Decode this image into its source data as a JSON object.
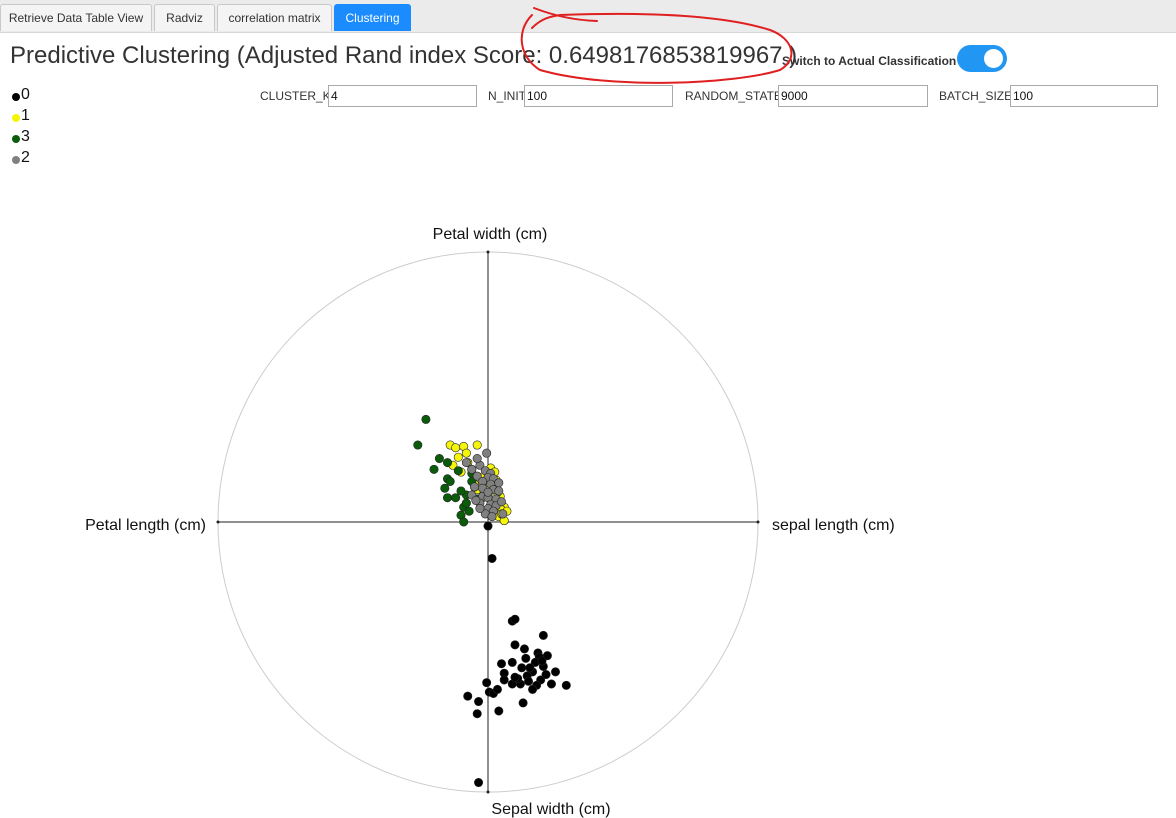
{
  "tabs": [
    {
      "label": "Retrieve Data Table View"
    },
    {
      "label": "Radviz"
    },
    {
      "label": "correlation matrix"
    },
    {
      "label": "Clustering"
    }
  ],
  "header": {
    "title": "Predictive Clustering (Adjusted Rand index Score: 0.6498176853819967 )",
    "switch_label": "Switch to Actual Classification",
    "switch_on": true
  },
  "legend": [
    {
      "label": "0",
      "color": "#000000"
    },
    {
      "label": "1",
      "color": "#f5f50a"
    },
    {
      "label": "3",
      "color": "#0a5c0a"
    },
    {
      "label": "2",
      "color": "#808080"
    }
  ],
  "params": {
    "cluster_k": {
      "label": "CLUSTER_K",
      "value": "4"
    },
    "n_init": {
      "label": "N_INIT",
      "value": "100"
    },
    "random_state": {
      "label": "RANDOM_STATE",
      "value": "9000"
    },
    "batch_size": {
      "label": "BATCH_SIZE",
      "value": "100"
    }
  },
  "annotation": {
    "color": "#e02020"
  },
  "chart_data": {
    "type": "scatter",
    "anchors": {
      "top": "Petal width (cm)",
      "right": "sepal length (cm)",
      "bottom": "Sepal width (cm)",
      "left": "Petal length (cm)"
    },
    "xlim": [
      -1,
      1
    ],
    "ylim": [
      -1,
      1
    ],
    "series": [
      {
        "name": "0",
        "color": "#000000",
        "points": [
          [
            0.0,
            -0.015
          ],
          [
            0.015,
            -0.135
          ],
          [
            0.09,
            -0.367
          ],
          [
            0.1,
            -0.36
          ],
          [
            0.205,
            -0.42
          ],
          [
            0.1,
            -0.455
          ],
          [
            0.135,
            -0.47
          ],
          [
            0.185,
            -0.485
          ],
          [
            0.14,
            -0.505
          ],
          [
            0.19,
            -0.5
          ],
          [
            0.205,
            -0.535
          ],
          [
            0.25,
            -0.555
          ],
          [
            0.29,
            -0.605
          ],
          [
            0.09,
            -0.52
          ],
          [
            0.05,
            -0.525
          ],
          [
            0.165,
            -0.555
          ],
          [
            0.12,
            -0.6
          ],
          [
            0.005,
            -0.63
          ],
          [
            0.13,
            -0.67
          ],
          [
            -0.035,
            -0.665
          ],
          [
            -0.04,
            -0.71
          ],
          [
            0.02,
            -0.635
          ],
          [
            -0.005,
            -0.595
          ],
          [
            0.06,
            -0.56
          ],
          [
            0.22,
            -0.495
          ],
          [
            0.175,
            -0.52
          ],
          [
            0.155,
            -0.54
          ],
          [
            0.195,
            -0.585
          ],
          [
            0.11,
            -0.58
          ],
          [
            0.235,
            -0.6
          ],
          [
            0.145,
            -0.57
          ],
          [
            0.215,
            -0.565
          ],
          [
            0.09,
            -0.6
          ],
          [
            0.035,
            -0.62
          ],
          [
            -0.075,
            -0.645
          ],
          [
            0.125,
            -0.54
          ],
          [
            0.18,
            -0.605
          ],
          [
            0.06,
            -0.585
          ],
          [
            0.2,
            -0.515
          ],
          [
            -0.035,
            -0.965
          ],
          [
            0.15,
            -0.59
          ],
          [
            0.165,
            -0.62
          ],
          [
            0.1,
            -0.575
          ],
          [
            0.04,
            -0.7
          ]
        ]
      },
      {
        "name": "1",
        "color": "#f5f50a",
        "points": [
          [
            -0.14,
            0.285
          ],
          [
            -0.12,
            0.275
          ],
          [
            -0.09,
            0.28
          ],
          [
            -0.04,
            0.285
          ],
          [
            -0.11,
            0.24
          ],
          [
            -0.075,
            0.22
          ],
          [
            -0.13,
            0.21
          ],
          [
            -0.1,
            0.185
          ],
          [
            -0.06,
            0.195
          ],
          [
            -0.02,
            0.165
          ],
          [
            0.01,
            0.145
          ],
          [
            0.03,
            0.12
          ],
          [
            0.0,
            0.1
          ],
          [
            0.045,
            0.065
          ],
          [
            0.06,
            0.055
          ],
          [
            0.05,
            0.045
          ],
          [
            0.07,
            0.04
          ],
          [
            0.03,
            0.03
          ],
          [
            0.04,
            0.02
          ],
          [
            -0.02,
            0.09
          ],
          [
            -0.05,
            0.14
          ],
          [
            -0.015,
            0.11
          ],
          [
            0.02,
            0.075
          ],
          [
            0.045,
            0.095
          ],
          [
            0.03,
            0.155
          ],
          [
            -0.08,
            0.255
          ],
          [
            0.01,
            0.2
          ],
          [
            0.025,
            0.185
          ],
          [
            -0.01,
            0.04
          ],
          [
            0.06,
            0.005
          ],
          [
            0.05,
            0.03
          ],
          [
            0.035,
            0.11
          ],
          [
            -0.04,
            0.12
          ],
          [
            0.005,
            0.13
          ]
        ]
      },
      {
        "name": "3",
        "color": "#0a5c0a",
        "points": [
          [
            -0.23,
            0.38
          ],
          [
            -0.26,
            0.285
          ],
          [
            -0.18,
            0.235
          ],
          [
            -0.2,
            0.195
          ],
          [
            -0.15,
            0.16
          ],
          [
            -0.16,
            0.125
          ],
          [
            -0.15,
            0.09
          ],
          [
            -0.12,
            0.09
          ],
          [
            -0.08,
            0.1
          ],
          [
            -0.09,
            0.055
          ],
          [
            -0.1,
            0.025
          ],
          [
            -0.09,
            0.0
          ],
          [
            -0.07,
            0.04
          ],
          [
            -0.14,
            0.15
          ],
          [
            -0.11,
            0.19
          ],
          [
            -0.06,
            0.18
          ],
          [
            -0.05,
            0.13
          ],
          [
            -0.08,
            0.07
          ],
          [
            -0.04,
            0.085
          ],
          [
            -0.1,
            0.115
          ],
          [
            -0.15,
            0.22
          ],
          [
            -0.06,
            0.15
          ]
        ]
      },
      {
        "name": "2",
        "color": "#808080",
        "points": [
          [
            -0.08,
            0.22
          ],
          [
            -0.06,
            0.195
          ],
          [
            -0.03,
            0.21
          ],
          [
            -0.01,
            0.19
          ],
          [
            0.01,
            0.18
          ],
          [
            -0.04,
            0.17
          ],
          [
            0.0,
            0.165
          ],
          [
            0.02,
            0.16
          ],
          [
            -0.02,
            0.15
          ],
          [
            0.01,
            0.14
          ],
          [
            0.04,
            0.145
          ],
          [
            -0.05,
            0.13
          ],
          [
            -0.02,
            0.125
          ],
          [
            0.02,
            0.12
          ],
          [
            0.04,
            0.115
          ],
          [
            -0.06,
            0.1
          ],
          [
            -0.02,
            0.095
          ],
          [
            0.0,
            0.09
          ],
          [
            0.03,
            0.085
          ],
          [
            -0.03,
            0.07
          ],
          [
            0.01,
            0.065
          ],
          [
            0.03,
            0.06
          ],
          [
            0.0,
            0.05
          ],
          [
            0.02,
            0.04
          ],
          [
            -0.01,
            0.03
          ],
          [
            0.015,
            0.02
          ],
          [
            -0.03,
            0.05
          ],
          [
            0.05,
            0.075
          ],
          [
            0.055,
            0.03
          ],
          [
            -0.04,
            0.235
          ],
          [
            -0.005,
            0.255
          ],
          [
            0.0,
            0.11
          ],
          [
            -0.045,
            0.08
          ]
        ]
      }
    ]
  }
}
